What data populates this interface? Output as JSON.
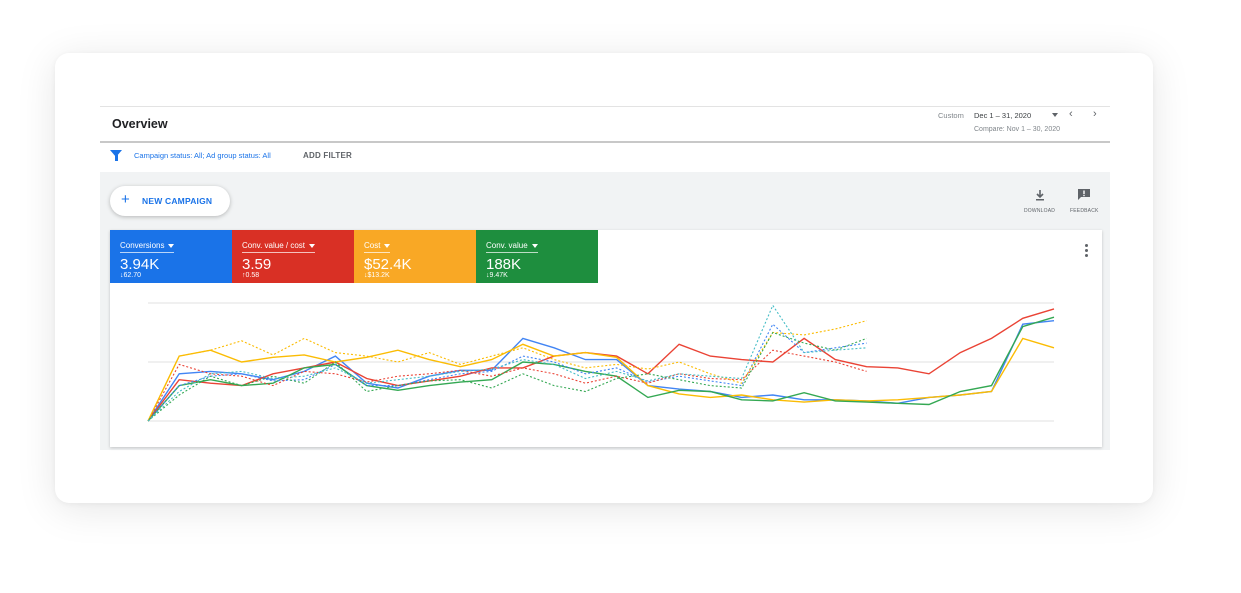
{
  "header": {
    "title": "Overview",
    "date_label": "Custom",
    "date_range": "Dec 1 – 31, 2020",
    "compare": "Compare: Nov 1 – 30, 2020",
    "prev_icon": "chevron-left-icon",
    "next_icon": "chevron-right-icon"
  },
  "filter": {
    "icon": "filter-icon",
    "campaign_status_text": "Campaign status: All; Ad group status: All",
    "add_filter": "ADD FILTER"
  },
  "toolbar": {
    "new_campaign": "NEW CAMPAIGN",
    "download": "DOWNLOAD",
    "feedback": "FEEDBACK"
  },
  "metrics": [
    {
      "name": "Conversions",
      "value": "3.94K",
      "delta": "↓62.70",
      "color": "#1a73e8"
    },
    {
      "name": "Conv. value / cost",
      "value": "3.59",
      "delta": "↑0.58",
      "color": "#d93025"
    },
    {
      "name": "Cost",
      "value": "$52.4K",
      "delta": "↓$13.2K",
      "color": "#f9a825"
    },
    {
      "name": "Conv. value",
      "value": "188K",
      "delta": "↓9.47K",
      "color": "#1e8e3e"
    }
  ],
  "chart_data": {
    "type": "line",
    "x_count": 30,
    "grid": true,
    "series": [
      {
        "color": "#4285f4",
        "dashed": false,
        "values": [
          0.0,
          0.4,
          0.42,
          0.4,
          0.35,
          0.42,
          0.55,
          0.32,
          0.28,
          0.38,
          0.43,
          0.43,
          0.7,
          0.62,
          0.52,
          0.52,
          0.3,
          0.27,
          0.25,
          0.2,
          0.22,
          0.18,
          0.18,
          0.17,
          0.15,
          0.2,
          0.22,
          0.25,
          0.82,
          0.85
        ]
      },
      {
        "color": "#ea4335",
        "dashed": false,
        "values": [
          0.0,
          0.35,
          0.32,
          0.3,
          0.4,
          0.45,
          0.5,
          0.36,
          0.3,
          0.34,
          0.38,
          0.45,
          0.45,
          0.55,
          0.58,
          0.55,
          0.4,
          0.65,
          0.55,
          0.52,
          0.5,
          0.7,
          0.52,
          0.46,
          0.45,
          0.4,
          0.58,
          0.7,
          0.87,
          0.95
        ]
      },
      {
        "color": "#fbbc04",
        "dashed": false,
        "values": [
          0.0,
          0.55,
          0.6,
          0.5,
          0.54,
          0.56,
          0.5,
          0.54,
          0.6,
          0.52,
          0.46,
          0.52,
          0.65,
          0.55,
          0.58,
          0.54,
          0.3,
          0.23,
          0.2,
          0.22,
          0.18,
          0.16,
          0.18,
          0.17,
          0.18,
          0.2,
          0.22,
          0.25,
          0.7,
          0.62
        ]
      },
      {
        "color": "#34a853",
        "dashed": false,
        "values": [
          0.0,
          0.3,
          0.35,
          0.3,
          0.32,
          0.45,
          0.48,
          0.3,
          0.26,
          0.3,
          0.33,
          0.35,
          0.5,
          0.48,
          0.42,
          0.38,
          0.2,
          0.26,
          0.25,
          0.18,
          0.17,
          0.24,
          0.17,
          0.16,
          0.15,
          0.14,
          0.25,
          0.3,
          0.8,
          0.88
        ]
      },
      {
        "color": "#4285f4",
        "dashed": true,
        "values": [
          0.0,
          0.3,
          0.38,
          0.4,
          0.34,
          0.35,
          0.48,
          0.3,
          0.3,
          0.35,
          0.4,
          0.42,
          0.55,
          0.5,
          0.4,
          0.45,
          0.33,
          0.38,
          0.34,
          0.3,
          0.82,
          0.58,
          0.62,
          0.66
        ]
      },
      {
        "color": "#ea4335",
        "dashed": true,
        "values": [
          0.0,
          0.48,
          0.4,
          0.38,
          0.3,
          0.42,
          0.4,
          0.33,
          0.38,
          0.4,
          0.43,
          0.38,
          0.45,
          0.4,
          0.32,
          0.38,
          0.32,
          0.4,
          0.36,
          0.35,
          0.6,
          0.55,
          0.5,
          0.42
        ]
      },
      {
        "color": "#fbbc04",
        "dashed": true,
        "values": [
          0.0,
          0.55,
          0.6,
          0.68,
          0.56,
          0.7,
          0.58,
          0.55,
          0.5,
          0.58,
          0.48,
          0.55,
          0.62,
          0.52,
          0.45,
          0.48,
          0.44,
          0.5,
          0.4,
          0.32,
          0.75,
          0.73,
          0.78,
          0.85
        ]
      },
      {
        "color": "#34a853",
        "dashed": true,
        "values": [
          0.0,
          0.22,
          0.38,
          0.3,
          0.38,
          0.32,
          0.5,
          0.25,
          0.3,
          0.34,
          0.35,
          0.28,
          0.4,
          0.3,
          0.25,
          0.36,
          0.4,
          0.35,
          0.3,
          0.28,
          0.75,
          0.66,
          0.6,
          0.7
        ]
      },
      {
        "color": "#46bdc6",
        "dashed": true,
        "values": [
          0.0,
          0.25,
          0.4,
          0.42,
          0.36,
          0.38,
          0.45,
          0.32,
          0.35,
          0.38,
          0.42,
          0.44,
          0.52,
          0.48,
          0.36,
          0.42,
          0.34,
          0.4,
          0.38,
          0.36,
          0.98,
          0.58,
          0.6,
          0.62
        ]
      }
    ]
  }
}
